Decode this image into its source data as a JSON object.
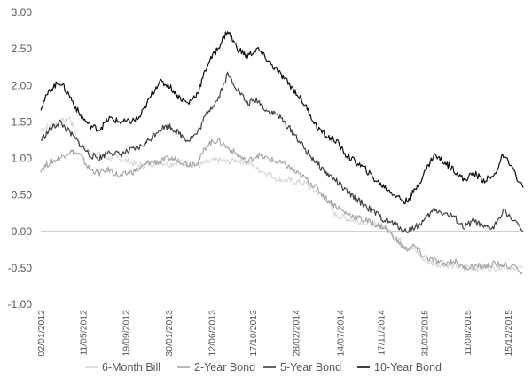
{
  "chart_data": {
    "type": "line",
    "title": "",
    "xlabel": "",
    "ylabel": "",
    "ylim": [
      -1.0,
      3.0
    ],
    "y_ticks": [
      "3.00",
      "2.50",
      "2.00",
      "1.50",
      "1.00",
      "0.50",
      "0.00",
      "-0.50",
      "-1.00"
    ],
    "y_tick_values": [
      3.0,
      2.5,
      2.0,
      1.5,
      1.0,
      0.5,
      0.0,
      -0.5,
      -1.0
    ],
    "x_ticks": [
      "02/01/2012",
      "11/05/2012",
      "19/09/2012",
      "30/01/2013",
      "12/06/2013",
      "17/10/2013",
      "28/02/2014",
      "14/07/2014",
      "17/11/2014",
      "31/03/2015",
      "11/08/2015",
      "15/12/2015"
    ],
    "x_tick_dates": [
      "2012-01-02",
      "2012-05-11",
      "2012-09-19",
      "2013-01-30",
      "2013-06-12",
      "2013-10-17",
      "2014-02-28",
      "2014-07-14",
      "2014-11-17",
      "2015-03-31",
      "2015-08-11",
      "2015-12-15"
    ],
    "x_range": [
      "2012-01-02",
      "2016-01-31"
    ],
    "grid": false,
    "legend_position": "bottom",
    "series": [
      {
        "name": "6-Month Bill",
        "color": "#d9d9d9",
        "x": [
          "2012-01-02",
          "2012-02-01",
          "2012-03-01",
          "2012-04-01",
          "2012-05-01",
          "2012-06-01",
          "2012-07-01",
          "2012-08-01",
          "2012-09-01",
          "2012-10-01",
          "2012-11-01",
          "2012-12-01",
          "2013-01-01",
          "2013-02-01",
          "2013-03-01",
          "2013-04-01",
          "2013-05-01",
          "2013-06-01",
          "2013-07-01",
          "2013-08-01",
          "2013-09-01",
          "2013-10-01",
          "2013-11-01",
          "2013-12-01",
          "2014-01-01",
          "2014-02-01",
          "2014-03-01",
          "2014-04-01",
          "2014-05-01",
          "2014-06-01",
          "2014-07-01",
          "2014-08-01",
          "2014-09-01",
          "2014-10-01",
          "2014-11-01",
          "2014-12-01",
          "2015-01-01",
          "2015-02-01",
          "2015-03-01",
          "2015-04-01",
          "2015-05-01",
          "2015-06-01",
          "2015-07-01",
          "2015-08-01",
          "2015-09-01",
          "2015-10-01",
          "2015-11-01",
          "2015-12-01",
          "2016-01-31"
        ],
        "values": [
          1.4,
          1.45,
          1.5,
          1.55,
          1.2,
          1.1,
          1.05,
          1.0,
          1.0,
          0.95,
          0.9,
          0.92,
          0.95,
          0.92,
          0.95,
          0.92,
          0.9,
          0.95,
          0.98,
          0.95,
          0.98,
          0.95,
          0.85,
          0.8,
          0.72,
          0.7,
          0.68,
          0.65,
          0.55,
          0.45,
          0.22,
          0.18,
          0.15,
          0.12,
          0.08,
          0.05,
          -0.05,
          -0.2,
          -0.25,
          -0.4,
          -0.45,
          -0.45,
          -0.48,
          -0.48,
          -0.5,
          -0.5,
          -0.5,
          -0.48,
          -0.5
        ]
      },
      {
        "name": "2-Year Bond",
        "color": "#a6a6a6",
        "x": [
          "2012-01-02",
          "2012-02-01",
          "2012-03-01",
          "2012-04-01",
          "2012-05-01",
          "2012-06-01",
          "2012-07-01",
          "2012-08-01",
          "2012-09-01",
          "2012-10-01",
          "2012-11-01",
          "2012-12-01",
          "2013-01-01",
          "2013-02-01",
          "2013-03-01",
          "2013-04-01",
          "2013-05-01",
          "2013-06-01",
          "2013-07-01",
          "2013-08-01",
          "2013-09-01",
          "2013-10-01",
          "2013-11-01",
          "2013-12-01",
          "2014-01-01",
          "2014-02-01",
          "2014-03-01",
          "2014-04-01",
          "2014-05-01",
          "2014-06-01",
          "2014-07-01",
          "2014-08-01",
          "2014-09-01",
          "2014-10-01",
          "2014-11-01",
          "2014-12-01",
          "2015-01-01",
          "2015-02-01",
          "2015-03-01",
          "2015-04-01",
          "2015-05-01",
          "2015-06-01",
          "2015-07-01",
          "2015-08-01",
          "2015-09-01",
          "2015-10-01",
          "2015-11-01",
          "2015-12-01",
          "2016-01-31"
        ],
        "values": [
          0.85,
          0.95,
          1.0,
          1.1,
          1.05,
          0.85,
          0.8,
          0.85,
          0.75,
          0.8,
          0.85,
          0.95,
          0.95,
          1.0,
          0.98,
          0.92,
          0.95,
          1.2,
          1.25,
          1.15,
          1.05,
          0.95,
          1.05,
          1.0,
          0.95,
          0.9,
          0.8,
          0.72,
          0.6,
          0.45,
          0.35,
          0.25,
          0.2,
          0.15,
          0.1,
          0.05,
          -0.1,
          -0.25,
          -0.2,
          -0.35,
          -0.4,
          -0.45,
          -0.4,
          -0.5,
          -0.48,
          -0.48,
          -0.45,
          -0.45,
          -0.55
        ]
      },
      {
        "name": "5-Year Bond",
        "color": "#404040",
        "x": [
          "2012-01-02",
          "2012-02-01",
          "2012-03-01",
          "2012-04-01",
          "2012-05-01",
          "2012-06-01",
          "2012-07-01",
          "2012-08-01",
          "2012-09-01",
          "2012-10-01",
          "2012-11-01",
          "2012-12-01",
          "2013-01-01",
          "2013-02-01",
          "2013-03-01",
          "2013-04-01",
          "2013-05-01",
          "2013-06-01",
          "2013-07-01",
          "2013-08-01",
          "2013-09-01",
          "2013-10-01",
          "2013-11-01",
          "2013-12-01",
          "2014-01-01",
          "2014-02-01",
          "2014-03-01",
          "2014-04-01",
          "2014-05-01",
          "2014-06-01",
          "2014-07-01",
          "2014-08-01",
          "2014-09-01",
          "2014-10-01",
          "2014-11-01",
          "2014-12-01",
          "2015-01-01",
          "2015-02-01",
          "2015-03-01",
          "2015-04-01",
          "2015-05-01",
          "2015-06-01",
          "2015-07-01",
          "2015-08-01",
          "2015-09-01",
          "2015-10-01",
          "2015-11-01",
          "2015-12-01",
          "2016-01-31"
        ],
        "values": [
          1.25,
          1.4,
          1.5,
          1.35,
          1.2,
          1.05,
          1.0,
          1.1,
          1.05,
          1.1,
          1.15,
          1.25,
          1.4,
          1.45,
          1.35,
          1.25,
          1.35,
          1.65,
          1.8,
          2.15,
          1.95,
          1.75,
          1.8,
          1.65,
          1.6,
          1.45,
          1.3,
          1.1,
          0.95,
          0.8,
          0.7,
          0.55,
          0.45,
          0.35,
          0.25,
          0.15,
          0.1,
          0.0,
          0.05,
          0.15,
          0.3,
          0.25,
          0.2,
          0.05,
          0.15,
          0.05,
          0.05,
          0.3,
          0.0
        ]
      },
      {
        "name": "10-Year Bond",
        "color": "#0d0d0d",
        "x": [
          "2012-01-02",
          "2012-02-01",
          "2012-03-01",
          "2012-04-01",
          "2012-05-01",
          "2012-06-01",
          "2012-07-01",
          "2012-08-01",
          "2012-09-01",
          "2012-10-01",
          "2012-11-01",
          "2012-12-01",
          "2013-01-01",
          "2013-02-01",
          "2013-03-01",
          "2013-04-01",
          "2013-05-01",
          "2013-06-01",
          "2013-07-01",
          "2013-08-01",
          "2013-09-01",
          "2013-10-01",
          "2013-11-01",
          "2013-12-01",
          "2014-01-01",
          "2014-02-01",
          "2014-03-01",
          "2014-04-01",
          "2014-05-01",
          "2014-06-01",
          "2014-07-01",
          "2014-08-01",
          "2014-09-01",
          "2014-10-01",
          "2014-11-01",
          "2014-12-01",
          "2015-01-01",
          "2015-02-01",
          "2015-03-01",
          "2015-04-01",
          "2015-05-01",
          "2015-06-01",
          "2015-07-01",
          "2015-08-01",
          "2015-09-01",
          "2015-10-01",
          "2015-11-01",
          "2015-12-01",
          "2016-01-31"
        ],
        "values": [
          1.7,
          1.95,
          2.05,
          1.85,
          1.6,
          1.45,
          1.4,
          1.55,
          1.5,
          1.5,
          1.55,
          1.8,
          2.05,
          2.0,
          1.85,
          1.75,
          1.9,
          2.3,
          2.5,
          2.75,
          2.5,
          2.4,
          2.5,
          2.35,
          2.2,
          2.05,
          1.9,
          1.7,
          1.45,
          1.3,
          1.25,
          1.05,
          0.95,
          0.85,
          0.7,
          0.6,
          0.5,
          0.4,
          0.55,
          0.8,
          1.05,
          0.95,
          0.85,
          0.7,
          0.8,
          0.7,
          0.75,
          1.05,
          0.6
        ]
      }
    ]
  }
}
